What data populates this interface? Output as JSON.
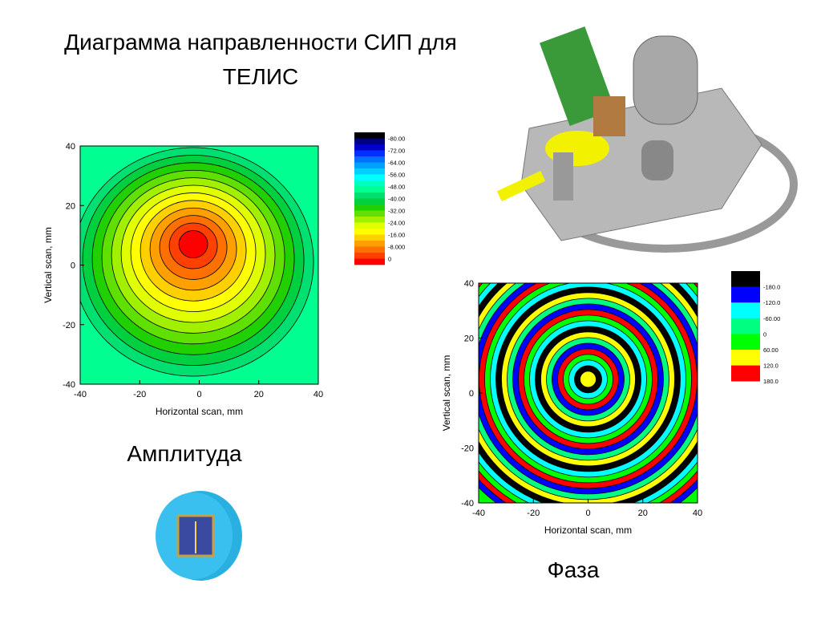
{
  "title": [
    "Диаграмма направленности СИП для",
    "ТЕЛИС"
  ],
  "plots": [
    {
      "caption": "Амплитуда",
      "x_label": "Horizontal scan, mm",
      "y_label": "Vertical scan, mm",
      "xlim": [
        -40,
        40
      ],
      "ylim": [
        -40,
        40
      ],
      "xticks": [
        -40,
        -20,
        0,
        20,
        40
      ],
      "yticks": [
        -40,
        -20,
        0,
        20,
        40
      ],
      "colorbar": {
        "labels": [
          "-80.00",
          "-72.00",
          "-64.00",
          "-56.00",
          "-48.00",
          "-40.00",
          "-32.00",
          "-24.00",
          "-16.00",
          "-8.000",
          "0"
        ],
        "colors": [
          "#000000",
          "#000080",
          "#0000c8",
          "#0030ff",
          "#0070ff",
          "#00a0ff",
          "#00d0ff",
          "#00ffff",
          "#00ffc0",
          "#00ff90",
          "#00e070",
          "#00d040",
          "#20d000",
          "#60e000",
          "#a0f000",
          "#e0ff00",
          "#ffff00",
          "#ffd000",
          "#ffa000",
          "#ff7000",
          "#ff4000",
          "#ff0000"
        ]
      }
    },
    {
      "caption": "Фаза",
      "x_label": "Horizontal scan, mm",
      "y_label": "Vertical scan, mm",
      "xlim": [
        -40,
        40
      ],
      "ylim": [
        -40,
        40
      ],
      "xticks": [
        -40,
        -20,
        0,
        20,
        40
      ],
      "yticks": [
        -40,
        -20,
        0,
        20,
        40
      ],
      "colorbar": {
        "labels": [
          "-180.0",
          "-120.0",
          "-60.00",
          "0",
          "60.00",
          "120.0",
          "180.0"
        ],
        "colors": [
          "#000000",
          "#0000ff",
          "#00ffff",
          "#00ff80",
          "#00ff00",
          "#ffff00",
          "#ff0000"
        ]
      }
    }
  ]
}
